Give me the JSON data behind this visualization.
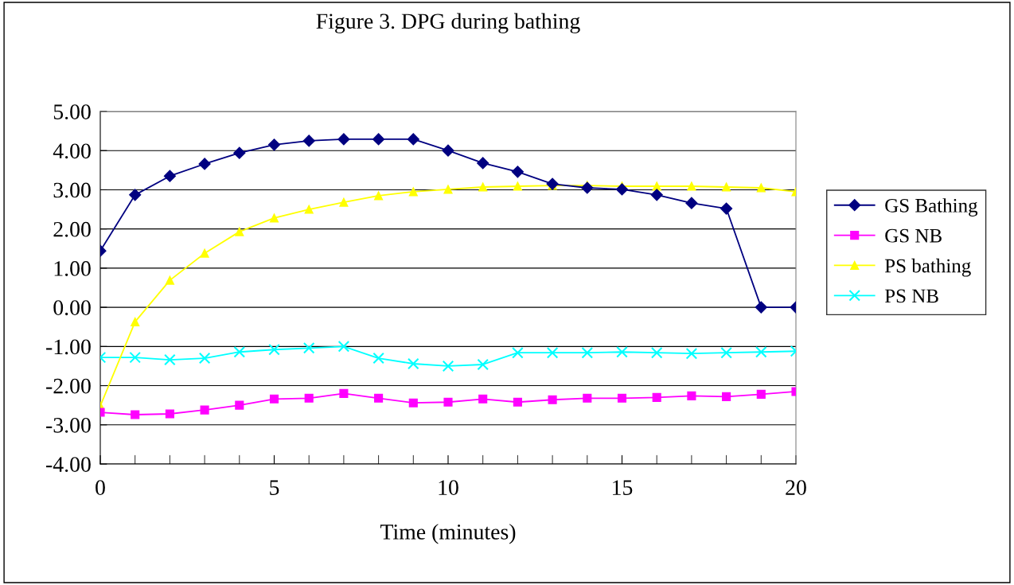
{
  "chart_data": {
    "type": "line",
    "title": "Figure 3. DPG during bathing",
    "xlabel": "Time (minutes)",
    "x": [
      0,
      1,
      2,
      3,
      4,
      5,
      6,
      7,
      8,
      9,
      10,
      11,
      12,
      13,
      14,
      15,
      16,
      17,
      18,
      19,
      20
    ],
    "series": [
      {
        "name": "GS Bathing",
        "color": "#000080",
        "marker": "diamond",
        "values": [
          1.44,
          2.87,
          3.35,
          3.66,
          3.94,
          4.15,
          4.25,
          4.29,
          4.29,
          4.29,
          4.0,
          3.68,
          3.46,
          3.15,
          3.05,
          3.01,
          2.87,
          2.66,
          2.52,
          0,
          0
        ]
      },
      {
        "name": "GS NB",
        "color": "#ff00ff",
        "marker": "square",
        "values": [
          -2.68,
          -2.74,
          -2.72,
          -2.62,
          -2.5,
          -2.34,
          -2.32,
          -2.2,
          -2.32,
          -2.44,
          -2.42,
          -2.34,
          -2.42,
          -2.36,
          -2.32,
          -2.32,
          -2.3,
          -2.26,
          -2.28,
          -2.22,
          -2.15
        ]
      },
      {
        "name": "PS bathing",
        "color": "#ffff00",
        "marker": "triangle",
        "values": [
          -2.52,
          -0.37,
          0.69,
          1.38,
          1.93,
          2.28,
          2.5,
          2.68,
          2.85,
          2.95,
          3.01,
          3.07,
          3.09,
          3.11,
          3.11,
          3.09,
          3.09,
          3.09,
          3.07,
          3.05,
          2.95
        ]
      },
      {
        "name": "PS NB",
        "color": "#00ffff",
        "marker": "cross",
        "values": [
          -1.28,
          -1.28,
          -1.34,
          -1.3,
          -1.14,
          -1.08,
          -1.04,
          -1.0,
          -1.3,
          -1.44,
          -1.5,
          -1.46,
          -1.16,
          -1.16,
          -1.16,
          -1.14,
          -1.16,
          -1.18,
          -1.16,
          -1.14,
          -1.12
        ]
      }
    ],
    "xlim": [
      0,
      20
    ],
    "xticks": [
      0,
      5,
      10,
      15,
      20
    ],
    "ylim": [
      -4,
      5
    ],
    "yticks": [
      {
        "value": -4,
        "label": "-4.00"
      },
      {
        "value": -3,
        "label": "-3.00"
      },
      {
        "value": -2,
        "label": "-2.00"
      },
      {
        "value": -1,
        "label": "-1.00"
      },
      {
        "value": 0,
        "label": "0.00"
      },
      {
        "value": 1,
        "label": "1.00"
      },
      {
        "value": 2,
        "label": "2.00"
      },
      {
        "value": 3,
        "label": "3.00"
      },
      {
        "value": 4,
        "label": "4.00"
      },
      {
        "value": 5,
        "label": "5.00"
      }
    ],
    "grid": "y",
    "legend": "right"
  }
}
